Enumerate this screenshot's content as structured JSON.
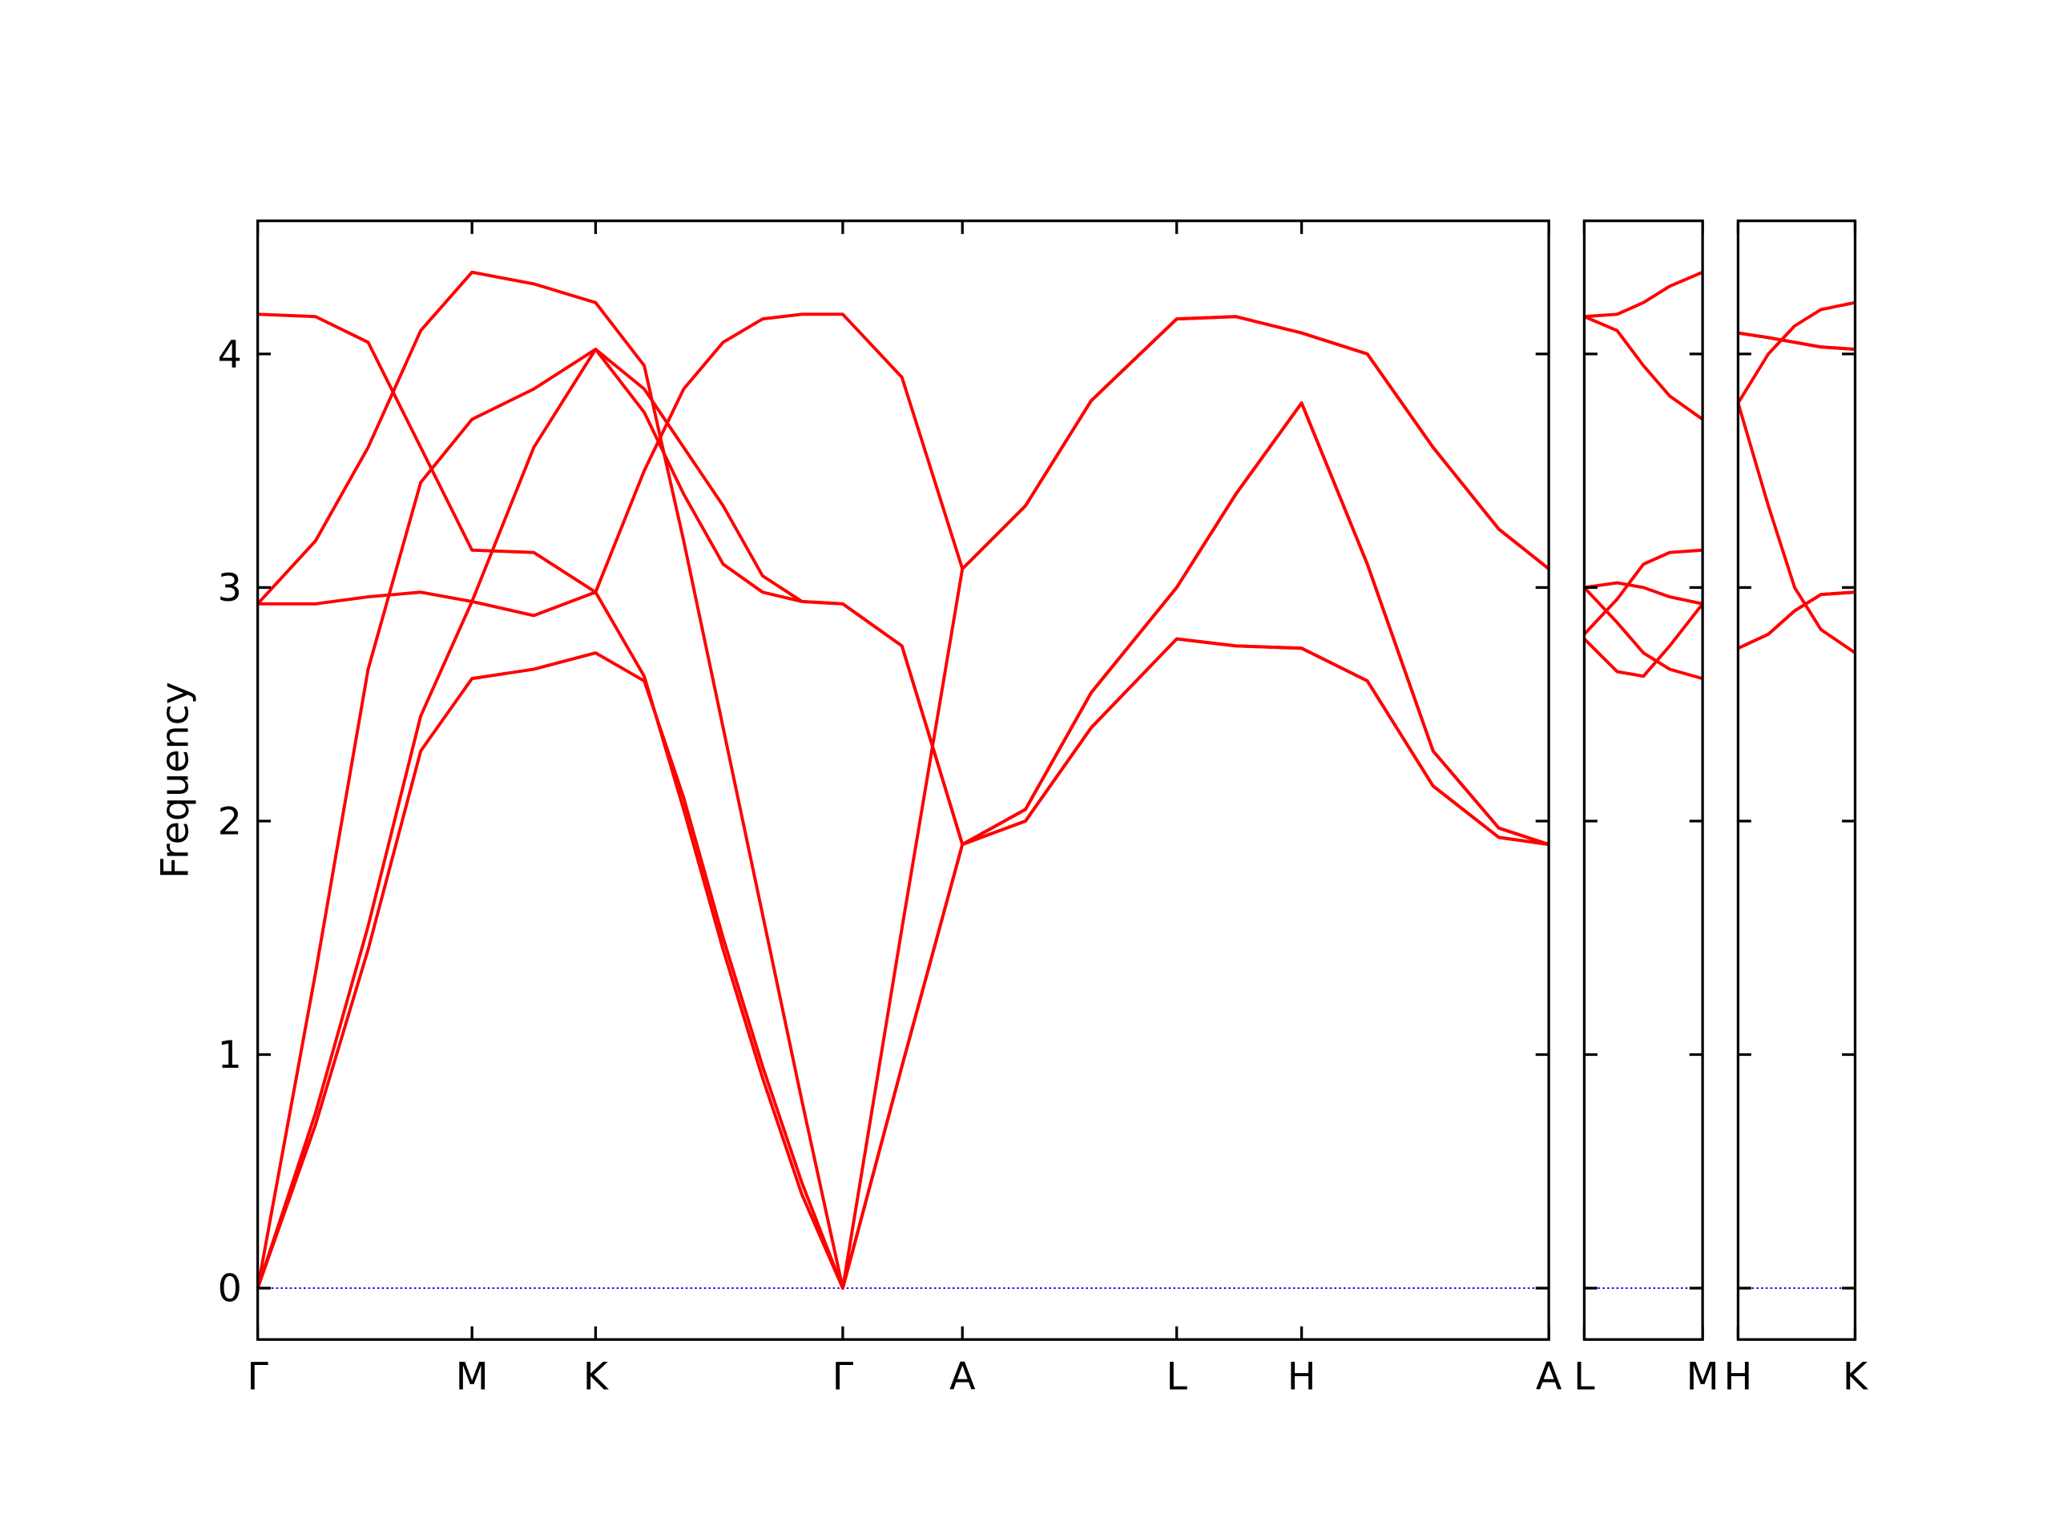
{
  "chart_data": [
    {
      "type": "line",
      "ylabel": "Frequency",
      "x": [
        0,
        0.44,
        0.84,
        1.24,
        1.63,
        2.1,
        2.57,
        2.94,
        3.24,
        3.54,
        3.84,
        4.14,
        4.45,
        4.9,
        5.36,
        5.84,
        6.34,
        6.99,
        7.44,
        7.94,
        8.44,
        8.94,
        9.44,
        9.82
      ],
      "xlim": [
        0,
        9.82
      ],
      "xticks": [
        {
          "value": 0,
          "label": "Γ"
        },
        {
          "value": 1.63,
          "label": "M"
        },
        {
          "value": 2.57,
          "label": "K"
        },
        {
          "value": 4.45,
          "label": "Γ"
        },
        {
          "value": 5.36,
          "label": "A"
        },
        {
          "value": 6.99,
          "label": "L"
        },
        {
          "value": 7.94,
          "label": "H"
        },
        {
          "value": 9.82,
          "label": "A"
        }
      ],
      "ylim": [
        -0.22,
        4.57
      ],
      "yticks": [
        0,
        1,
        2,
        3,
        4
      ],
      "zero_line_color": "#0000ff",
      "series": [
        {
          "color": "#ff0000",
          "values": [
            0,
            0.7,
            1.45,
            2.3,
            2.61,
            2.65,
            2.72,
            2.6,
            2.1,
            1.5,
            0.95,
            0.45,
            0,
            0.95,
            1.9,
            2.0,
            2.4,
            2.78,
            2.75,
            2.74,
            2.6,
            2.15,
            1.93,
            1.9
          ]
        },
        {
          "color": "#ff0000",
          "values": [
            0,
            0.75,
            1.55,
            2.45,
            2.94,
            3.6,
            4.02,
            3.85,
            3.6,
            3.35,
            3.05,
            2.94,
            2.93,
            2.75,
            1.9,
            2.05,
            2.55,
            3.0,
            3.4,
            3.79,
            3.1,
            2.3,
            1.97,
            1.9
          ]
        },
        {
          "color": "#ff0000",
          "values": [
            0,
            1.35,
            2.65,
            3.45,
            3.72,
            3.85,
            4.02,
            3.75,
            3.4,
            3.1,
            2.98,
            2.94,
            2.93,
            2.75,
            1.9,
            2.0,
            2.4,
            2.78,
            2.75,
            2.74,
            2.6,
            2.15,
            1.93,
            1.9
          ]
        },
        {
          "color": "#ff0000",
          "values": [
            2.93,
            2.93,
            2.96,
            2.98,
            2.94,
            2.88,
            2.98,
            2.62,
            2.05,
            1.45,
            0.9,
            0.4,
            0,
            1.54,
            3.08,
            3.35,
            3.8,
            4.15,
            4.16,
            4.09,
            4.0,
            3.6,
            3.25,
            3.08
          ]
        },
        {
          "color": "#ff0000",
          "values": [
            2.93,
            3.2,
            3.6,
            4.1,
            4.35,
            4.3,
            4.22,
            3.95,
            3.2,
            2.4,
            1.6,
            0.8,
            0,
            0.95,
            1.9,
            2.05,
            2.55,
            3.0,
            3.4,
            3.79,
            3.1,
            2.3,
            1.97,
            1.9
          ]
        },
        {
          "color": "#ff0000",
          "values": [
            4.17,
            4.16,
            4.05,
            3.6,
            3.16,
            3.15,
            2.98,
            3.5,
            3.85,
            4.05,
            4.15,
            4.17,
            4.17,
            3.9,
            3.08,
            3.35,
            3.8,
            4.15,
            4.16,
            4.09,
            4.0,
            3.6,
            3.25,
            3.08
          ]
        }
      ]
    },
    {
      "type": "line",
      "x": [
        0,
        0.25,
        0.45,
        0.65,
        0.9
      ],
      "xlim": [
        0,
        0.9
      ],
      "xticks": [
        {
          "value": 0,
          "label": "L"
        },
        {
          "value": 0.9,
          "label": "M"
        }
      ],
      "ylim": [
        -0.22,
        4.57
      ],
      "yticks": [
        0,
        1,
        2,
        3,
        4
      ],
      "zero_line_color": "#0000ff",
      "series": [
        {
          "color": "#ff0000",
          "values": [
            2.78,
            2.64,
            2.62,
            2.75,
            2.93
          ]
        },
        {
          "color": "#ff0000",
          "values": [
            2.8,
            2.95,
            3.1,
            3.15,
            3.16
          ]
        },
        {
          "color": "#ff0000",
          "values": [
            3.0,
            3.02,
            3.0,
            2.96,
            2.93
          ]
        },
        {
          "color": "#ff0000",
          "values": [
            3.0,
            2.85,
            2.72,
            2.65,
            2.61
          ]
        },
        {
          "color": "#ff0000",
          "values": [
            4.16,
            4.1,
            3.95,
            3.82,
            3.72
          ]
        },
        {
          "color": "#ff0000",
          "values": [
            4.16,
            4.17,
            4.22,
            4.29,
            4.35
          ]
        }
      ]
    },
    {
      "type": "line",
      "x": [
        0,
        0.23,
        0.43,
        0.63,
        0.89
      ],
      "xlim": [
        0,
        0.89
      ],
      "xticks": [
        {
          "value": 0,
          "label": "H"
        },
        {
          "value": 0.89,
          "label": "K"
        }
      ],
      "ylim": [
        -0.22,
        4.57
      ],
      "yticks": [
        0,
        1,
        2,
        3,
        4
      ],
      "zero_line_color": "#0000ff",
      "series": [
        {
          "color": "#ff0000",
          "values": [
            2.74,
            2.8,
            2.9,
            2.97,
            2.98
          ]
        },
        {
          "color": "#ff0000",
          "values": [
            3.79,
            3.35,
            3.0,
            2.82,
            2.72
          ]
        },
        {
          "color": "#ff0000",
          "values": [
            2.74,
            2.8,
            2.9,
            2.97,
            2.98
          ]
        },
        {
          "color": "#ff0000",
          "values": [
            3.79,
            4.0,
            4.12,
            4.19,
            4.22
          ]
        },
        {
          "color": "#ff0000",
          "values": [
            4.09,
            4.07,
            4.05,
            4.03,
            4.02
          ]
        },
        {
          "color": "#ff0000",
          "values": [
            4.09,
            4.07,
            4.05,
            4.03,
            4.02
          ]
        }
      ]
    }
  ]
}
